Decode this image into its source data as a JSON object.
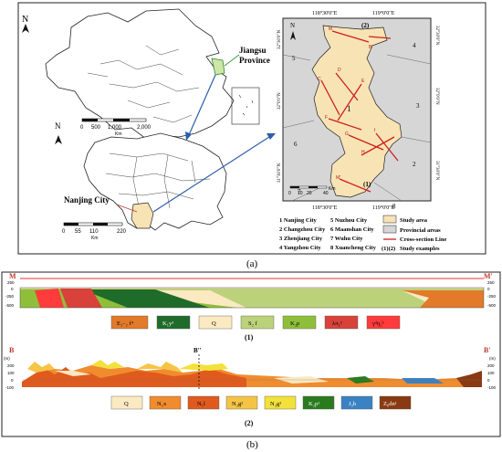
{
  "panel_a": {
    "caption": "(a)",
    "north_label": "N",
    "china_map": {
      "province_label": "Jiangsu\nProvince",
      "province_line1": "Jiangsu",
      "province_line2": "Province",
      "scale_ticks": [
        "0",
        "500",
        "1,000",
        "2,000"
      ],
      "scale_unit": "Km"
    },
    "jiangsu_map": {
      "city_label": "Nanjing City",
      "scale_ticks": [
        "0",
        "55",
        "110",
        "220"
      ],
      "scale_unit": "Km"
    },
    "study_map": {
      "lon_labels": [
        "118°30'0\"E",
        "119°0'0\"E"
      ],
      "lat_labels": [
        "32°30'0\"N",
        "32°0'0\"N",
        "31°30'0\"N"
      ],
      "scale_ticks": [
        "0",
        "10",
        "20",
        "40"
      ],
      "scale_unit": "Km",
      "region_numbers": [
        "4",
        "5",
        "3",
        "6",
        "2",
        "7",
        "8",
        "1"
      ],
      "section_labels": [
        "(1)",
        "(2)"
      ],
      "section_points": [
        "M",
        "M'",
        "B",
        "B'",
        "C",
        "D",
        "E",
        "F",
        "G",
        "H",
        "I",
        "J",
        "K",
        "L",
        "A",
        "A'"
      ]
    },
    "legend_cities": [
      "1  Nanjing City",
      "2  Changzhou City",
      "3  Zhenjiang City",
      "4  Yangzhou City",
      "5  Nuzhou City",
      "6  Maanshan City",
      "7  Wuhu City",
      "8  Xuancheng City"
    ],
    "legend_map": [
      {
        "label": "Study area",
        "color": "#f8e3b4"
      },
      {
        "label": "Provincial areas",
        "color": "#d6d6d6"
      },
      {
        "label": "Cross-section Line",
        "color": "#cc1f1f"
      },
      {
        "label": "Study examples",
        "symbol": "(1)(2)"
      }
    ]
  },
  "panel_b": {
    "caption": "(b)",
    "section1": {
      "left_end": "M",
      "right_end": "M'",
      "number_label": "(1)",
      "y_ticks": [
        "250",
        "0",
        "-250",
        "-500"
      ],
      "legend": [
        {
          "label": "E₁₋₂ f⁴",
          "color": "#e27a2a"
        },
        {
          "label": "K₁y³",
          "color": "#1f6b2a"
        },
        {
          "label": "Q",
          "color": "#fbe9c2"
        },
        {
          "label": "S₂ f",
          "color": "#bcd27a"
        },
        {
          "label": "K₂p",
          "color": "#8fbf3a"
        },
        {
          "label": "λπ₁²",
          "color": "#d8423a"
        },
        {
          "label": "γᵈη₂ᵇ",
          "color": "#ff3b3b"
        }
      ]
    },
    "section2": {
      "left_end": "B",
      "right_end": "B'",
      "mid_label": "B''",
      "number_label": "(2)",
      "y_ticks": [
        "200",
        "100",
        "0",
        "-100"
      ],
      "unit": "(m)",
      "legend": [
        {
          "label": "Q",
          "color": "#fbe9c2"
        },
        {
          "label": "N₂x",
          "color": "#f08c2e"
        },
        {
          "label": "N₁l",
          "color": "#e05a1e"
        },
        {
          "label": "N₂g²",
          "color": "#f6c445"
        },
        {
          "label": "N₂g¹",
          "color": "#f2e13a"
        },
        {
          "label": "K₂p¹",
          "color": "#2a7a1e"
        },
        {
          "label": "J₃h",
          "color": "#3b82c4"
        },
        {
          "label": "Z₀dn¹",
          "color": "#8a3a12"
        }
      ]
    }
  }
}
